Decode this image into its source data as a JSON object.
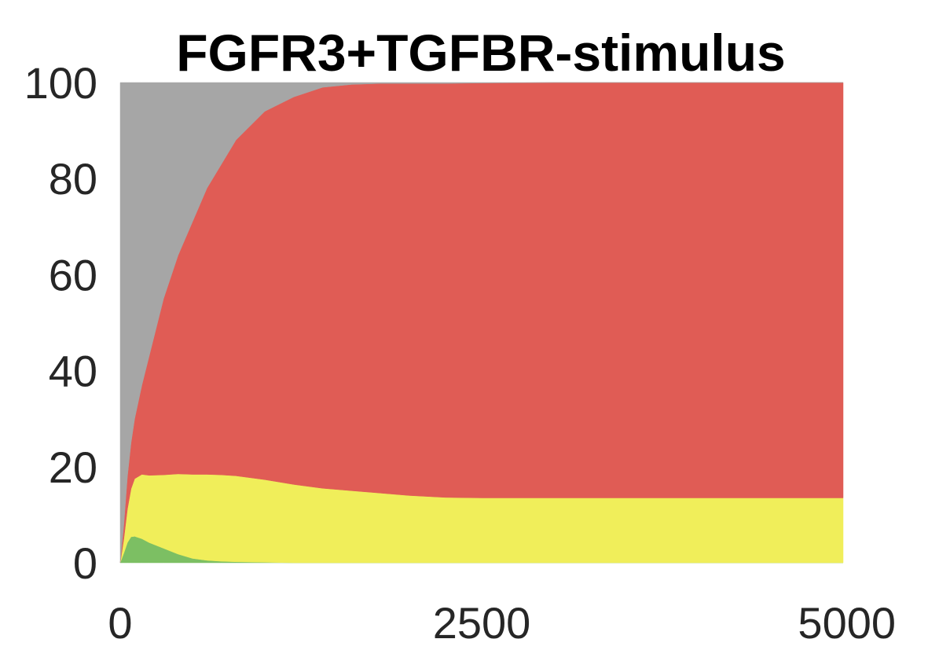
{
  "chart_data": {
    "type": "area",
    "stacked": true,
    "title": "FGFR3+TGFBR-stimulus",
    "xlabel": "",
    "ylabel": "",
    "xlim": [
      0,
      5000
    ],
    "ylim": [
      0,
      100
    ],
    "x_ticks": [
      "0",
      "2500",
      "5000"
    ],
    "y_ticks": [
      "0",
      "20",
      "40",
      "60",
      "80",
      "100"
    ],
    "grid": false,
    "x": [
      0,
      25,
      50,
      75,
      100,
      150,
      200,
      300,
      400,
      500,
      600,
      700,
      800,
      1000,
      1200,
      1400,
      1600,
      1800,
      2000,
      2250,
      2500,
      3000,
      3500,
      4000,
      4500,
      5000
    ],
    "series": [
      {
        "color": "#7cbf63",
        "values": [
          0,
          2,
          4.2,
          5.4,
          5.5,
          5.0,
          4.2,
          3.0,
          1.8,
          0.9,
          0.5,
          0.3,
          0.2,
          0.1,
          0,
          0,
          0,
          0,
          0,
          0,
          0,
          0,
          0,
          0,
          0,
          0
        ]
      },
      {
        "color": "#f0ee5a",
        "values": [
          0,
          3,
          7.0,
          10.0,
          12.0,
          13.4,
          14.0,
          15.3,
          16.7,
          17.5,
          17.9,
          18.0,
          17.9,
          17.2,
          16.3,
          15.5,
          15.0,
          14.5,
          14.0,
          13.6,
          13.5,
          13.5,
          13.5,
          13.5,
          13.5,
          13.5
        ]
      },
      {
        "color": "#e05c55",
        "values": [
          0,
          3,
          6.8,
          9.6,
          12.5,
          18.6,
          24.8,
          36.7,
          45.5,
          52.6,
          59.6,
          64.7,
          69.9,
          76.7,
          80.7,
          83.5,
          84.6,
          85.3,
          85.8,
          86.2,
          86.4,
          86.5,
          86.5,
          86.5,
          86.5,
          86.5
        ]
      },
      {
        "color": "#a6a6a6",
        "values": [
          100,
          92,
          82.0,
          75.0,
          70.0,
          63.0,
          57.0,
          45.0,
          36.0,
          29.0,
          22.0,
          17.0,
          12.0,
          6.0,
          3.0,
          1.0,
          0.4,
          0.2,
          0.2,
          0.2,
          0.1,
          0,
          0,
          0,
          0,
          0
        ]
      }
    ]
  }
}
